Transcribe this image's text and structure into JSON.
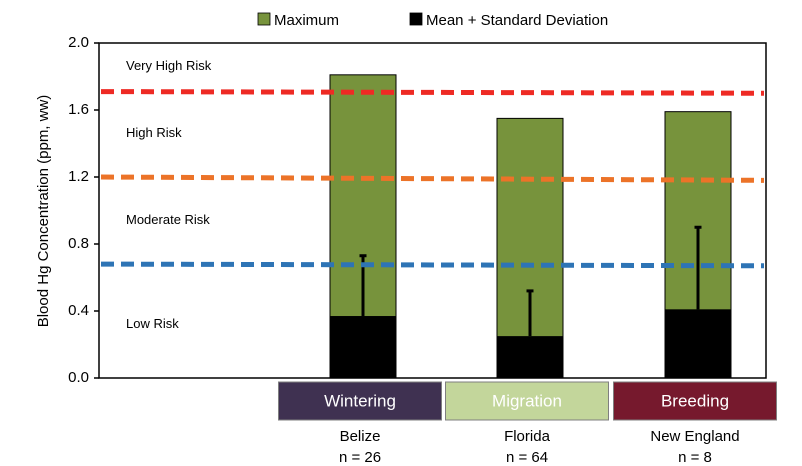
{
  "chart_data": {
    "type": "bar",
    "ylabel": "Blood Hg Concentration (ppm, ww)",
    "ylim": [
      0,
      2.0
    ],
    "yticks": [
      "0.0",
      "0.4",
      "0.8",
      "1.2",
      "1.6",
      "2.0"
    ],
    "ytick_values": [
      0,
      0.4,
      0.8,
      1.2,
      1.6,
      2.0
    ],
    "legend": {
      "placement": "top",
      "items": [
        {
          "label": "Maximum",
          "color": "#77933c"
        },
        {
          "label": "Mean + Standard Deviation",
          "color": "#000000"
        }
      ]
    },
    "categories": [
      {
        "season": "Wintering",
        "location": "Belize",
        "n": "n = 26",
        "season_color": "#3f3151"
      },
      {
        "season": "Migration",
        "location": "Florida",
        "n": "n = 64",
        "season_color": "#c3d69b"
      },
      {
        "season": "Breeding",
        "location": "New England",
        "n": "n = 8",
        "season_color": "#76192d"
      }
    ],
    "series": [
      {
        "name": "Maximum",
        "color": "#77933c",
        "values": [
          1.81,
          1.55,
          1.59
        ]
      },
      {
        "name": "Mean + Standard Deviation",
        "color": "#000000",
        "values": [
          0.37,
          0.25,
          0.41
        ],
        "errors": [
          0.36,
          0.27,
          0.49
        ]
      }
    ],
    "thresholds": [
      {
        "value": 1.71,
        "value_right": 1.7,
        "color": "#ee2a24"
      },
      {
        "value": 1.2,
        "value_right": 1.18,
        "color": "#ec7328"
      },
      {
        "value": 0.68,
        "value_right": 0.67,
        "color": "#2e74b5"
      }
    ],
    "risk_labels": [
      {
        "text": "Very High Risk",
        "value": 1.86
      },
      {
        "text": "High Risk",
        "value": 1.46
      },
      {
        "text": "Moderate Risk",
        "value": 0.94
      },
      {
        "text": "Low Risk",
        "value": 0.32
      }
    ]
  }
}
